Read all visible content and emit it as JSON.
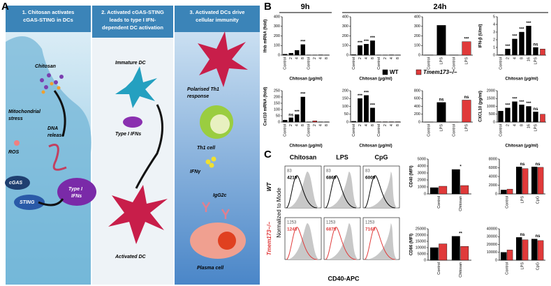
{
  "panel_a": {
    "letter": "A",
    "columns": [
      {
        "title_lines": [
          "1. Chitosan activates",
          "cGAS-STING in DCs"
        ]
      },
      {
        "title_lines": [
          "2. Activated cGAS-STING",
          "leads to type I IFN-",
          "dependent DC activation"
        ]
      },
      {
        "title_lines": [
          "3. Activated DCs drive",
          "cellular immunity"
        ]
      }
    ],
    "labels": {
      "chitosan": "Chitosan",
      "mito": [
        "Mitochondrial",
        "stress"
      ],
      "dna": [
        "DNA",
        "release"
      ],
      "ros": "ROS",
      "cgas": "cGAS",
      "sting": "STING",
      "ifn1": [
        "Type I",
        "IFNs"
      ],
      "immature": "Immature DC",
      "ifn2": "Type I IFNs",
      "activated": "Activated DC",
      "th1resp": [
        "Polarised Th1",
        "response"
      ],
      "th1": "Th1 cell",
      "ifng": "IFNγ",
      "igg": "IgG2c",
      "plasma": "Plasma cell"
    }
  },
  "panel_b": {
    "letter": "B",
    "time_9h": "9h",
    "time_24h": "24h",
    "legend": [
      {
        "name": "WT",
        "color": "#000000"
      },
      {
        "name": "Tmem173−/−",
        "color": "#e03a3a"
      }
    ],
    "charts": [
      {
        "ylabel": "Ifnb mRNA (fold)",
        "ylim": [
          0,
          400
        ],
        "yticks": [
          0,
          100,
          200,
          300,
          400
        ],
        "categories": [
          "Control",
          "2",
          "4",
          "8",
          "Control",
          "2",
          "4",
          "8"
        ],
        "values": [
          10,
          20,
          50,
          110,
          2,
          2,
          3,
          2
        ],
        "colors": [
          "#000000",
          "#000000",
          "#000000",
          "#000000",
          "#e03a3a",
          "#e03a3a",
          "#e03a3a",
          "#e03a3a"
        ],
        "value_labels": [
          null,
          null,
          null,
          "***",
          null,
          null,
          null,
          null
        ],
        "xlabel": "Chitosan (μg/ml)"
      },
      {
        "ylim": [
          0,
          400
        ],
        "yticks": [
          0,
          100,
          200,
          300,
          400
        ],
        "categories": [
          "Control",
          "2",
          "4",
          "8",
          "Control",
          "2",
          "4",
          "8"
        ],
        "values": [
          5,
          100,
          115,
          150,
          2,
          2,
          3,
          2
        ],
        "colors": [
          "#000000",
          "#000000",
          "#000000",
          "#000000",
          "#e03a3a",
          "#e03a3a",
          "#e03a3a",
          "#e03a3a"
        ],
        "value_labels": [
          null,
          "***",
          "***",
          "***",
          null,
          null,
          null,
          null
        ],
        "xlabel": "Chitosan (μg/ml)"
      },
      {
        "ylim": [
          0,
          400
        ],
        "yticks": [
          0,
          100,
          200,
          300,
          400
        ],
        "categories": [
          "Control",
          "LPS",
          "Control",
          "LPS"
        ],
        "values": [
          2,
          310,
          2,
          140
        ],
        "colors": [
          "#000000",
          "#000000",
          "#e03a3a",
          "#e03a3a"
        ],
        "value_labels": [
          null,
          null,
          null,
          "***"
        ]
      },
      {
        "ylabel": "IFN-β (U/ml)",
        "ylim": [
          0,
          5
        ],
        "yticks": [
          0,
          1,
          2,
          3,
          4,
          5
        ],
        "categories": [
          "Control",
          "2",
          "4",
          "8",
          "16",
          "LPS",
          null
        ],
        "values": [
          0.05,
          0.8,
          2.1,
          3.0,
          3.8,
          1.0,
          0.8
        ],
        "colors": [
          "#000000",
          "#000000",
          "#000000",
          "#000000",
          "#000000",
          "#000000",
          "#e03a3a"
        ],
        "value_labels": [
          null,
          "***",
          "***",
          "***",
          "***",
          "ns",
          null
        ],
        "xlabel": "Chitosan (μg/ml)"
      },
      {
        "ylabel": "Cxcl10 mRNA (fold)",
        "ylim": [
          0,
          250
        ],
        "yticks": [
          0,
          50,
          100,
          150,
          200,
          250
        ],
        "categories": [
          "Control",
          "2",
          "4",
          "8",
          "Control",
          "2",
          "4",
          "8"
        ],
        "values": [
          15,
          35,
          60,
          200,
          2,
          10,
          2,
          2
        ],
        "colors": [
          "#000000",
          "#000000",
          "#000000",
          "#000000",
          "#e03a3a",
          "#e03a3a",
          "#e03a3a",
          "#e03a3a"
        ],
        "value_labels": [
          null,
          "ns",
          "***",
          "***",
          null,
          null,
          null,
          null
        ],
        "xlabel": "Chitosan (μg/ml)"
      },
      {
        "ylim": [
          0,
          200
        ],
        "yticks": [
          0,
          50,
          100,
          150,
          200
        ],
        "categories": [
          "Control",
          "2",
          "4",
          "8",
          "Control",
          "2",
          "4",
          "8"
        ],
        "values": [
          5,
          150,
          170,
          90,
          2,
          2,
          2,
          2
        ],
        "colors": [
          "#000000",
          "#000000",
          "#000000",
          "#000000",
          "#e03a3a",
          "#e03a3a",
          "#e03a3a",
          "#e03a3a"
        ],
        "value_labels": [
          null,
          "***",
          "***",
          "***",
          null,
          null,
          null,
          null
        ],
        "xlabel": "Chitosan (μg/ml)"
      },
      {
        "ylim": [
          0,
          800
        ],
        "yticks": [
          0,
          200,
          400,
          600,
          800
        ],
        "categories": [
          "Control",
          "LPS",
          "Control",
          "LPS"
        ],
        "values": [
          2,
          500,
          2,
          560
        ],
        "colors": [
          "#000000",
          "#000000",
          "#e03a3a",
          "#e03a3a"
        ],
        "value_labels": [
          null,
          "ns",
          null,
          "ns"
        ]
      },
      {
        "ylabel": "CXCL10 (pg/ml)",
        "ylim": [
          0,
          2000
        ],
        "yticks": [
          0,
          500,
          1000,
          1500,
          2000
        ],
        "categories": [
          "Control",
          "2",
          "4",
          "8",
          "16",
          "LPS",
          null
        ],
        "values": [
          700,
          900,
          1300,
          1100,
          1000,
          650,
          500
        ],
        "colors": [
          "#000000",
          "#000000",
          "#000000",
          "#000000",
          "#000000",
          "#000000",
          "#e03a3a"
        ],
        "value_labels": [
          null,
          "***",
          "***",
          "***",
          "***",
          "ns",
          null
        ],
        "xlabel": "Chitosan (μg/ml)"
      }
    ]
  },
  "panel_c": {
    "letter": "C",
    "flow": {
      "columns": [
        "Chitosan",
        "LPS",
        "CpG"
      ],
      "rows": [
        {
          "label": "WT",
          "counts": [
            [
              83,
              4219
            ],
            [
              83,
              6869
            ],
            [
              83,
              6009
            ]
          ]
        },
        {
          "label": "Tmem173−/−",
          "counts": [
            [
              1253,
              1243
            ],
            [
              1253,
              6878
            ],
            [
              1253,
              7163
            ]
          ]
        }
      ],
      "ylabel": "Normalized to Mode",
      "xlabel": "CD40-APC"
    },
    "charts": [
      {
        "ylabel": "CD40 (MFI)",
        "ylim": [
          0,
          5000
        ],
        "yticks": [
          0,
          1000,
          2000,
          3000,
          4000,
          5000
        ],
        "categories": [
          "Control",
          "Chitosan"
        ],
        "series": [
          {
            "color": "#000000",
            "values": [
              900,
              3500
            ]
          },
          {
            "color": "#e03a3a",
            "values": [
              1100,
              1200
            ]
          }
        ],
        "value_labels": [
          null,
          "*"
        ]
      },
      {
        "ylim": [
          0,
          8000
        ],
        "yticks": [
          0,
          2000,
          4000,
          6000,
          8000
        ],
        "categories": [
          "Control",
          "LPS",
          "CpG"
        ],
        "series": [
          {
            "color": "#000000",
            "values": [
              900,
              6200,
              6200
            ]
          },
          {
            "color": "#e03a3a",
            "values": [
              1100,
              5800,
              6100
            ]
          }
        ],
        "value_labels": [
          null,
          "ns",
          "ns"
        ]
      },
      {
        "ylabel": "CD86 (MFI)",
        "ylim": [
          0,
          25000
        ],
        "yticks": [
          0,
          5000,
          10000,
          15000,
          20000,
          25000
        ],
        "categories": [
          "Control",
          "Chitosan"
        ],
        "series": [
          {
            "color": "#000000",
            "values": [
              10000,
              19000
            ]
          },
          {
            "color": "#e03a3a",
            "values": [
              13000,
              11000
            ]
          }
        ],
        "value_labels": [
          null,
          "**"
        ]
      },
      {
        "ylim": [
          0,
          40000
        ],
        "yticks": [
          0,
          10000,
          20000,
          30000,
          40000
        ],
        "categories": [
          "Control",
          "LPS",
          "CpG"
        ],
        "series": [
          {
            "color": "#000000",
            "values": [
              10000,
              29000,
              27000
            ]
          },
          {
            "color": "#e03a3a",
            "values": [
              13000,
              26000,
              25000
            ]
          }
        ],
        "value_labels": [
          null,
          "ns",
          "ns"
        ]
      }
    ]
  }
}
